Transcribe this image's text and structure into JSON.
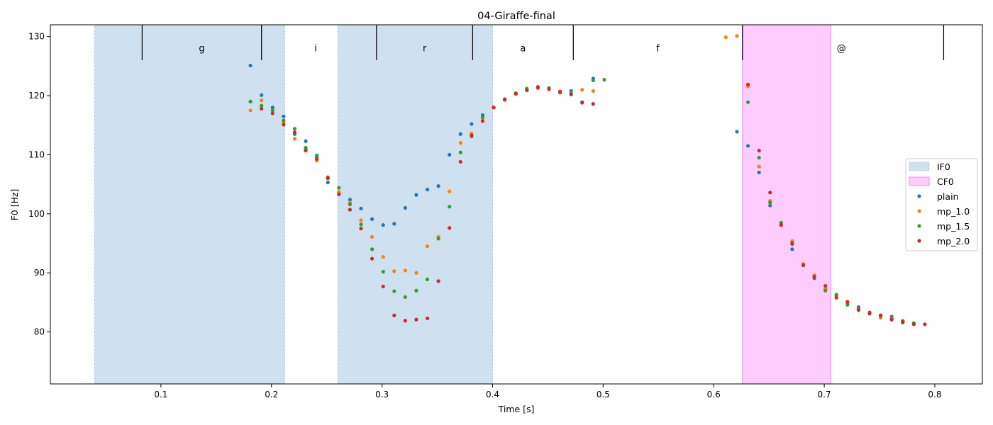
{
  "chart_data": {
    "type": "scatter",
    "title": "04-Giraffe-final",
    "xlabel": "Time [s]",
    "ylabel": "F0 [Hz]",
    "xlim": [
      0.0,
      0.843
    ],
    "ylim": [
      71.2,
      132.0
    ],
    "xticks": [
      {
        "value": 0.1,
        "label": "0.1"
      },
      {
        "value": 0.2,
        "label": "0.2"
      },
      {
        "value": 0.3,
        "label": "0.3"
      },
      {
        "value": 0.4,
        "label": "0.4"
      },
      {
        "value": 0.5,
        "label": "0.5"
      },
      {
        "value": 0.6,
        "label": "0.6"
      },
      {
        "value": 0.7,
        "label": "0.7"
      },
      {
        "value": 0.8,
        "label": "0.8"
      }
    ],
    "yticks": [
      {
        "value": 80,
        "label": "80"
      },
      {
        "value": 90,
        "label": "90"
      },
      {
        "value": 100,
        "label": "100"
      },
      {
        "value": 110,
        "label": "110"
      },
      {
        "value": 120,
        "label": "120"
      },
      {
        "value": 130,
        "label": "130"
      }
    ],
    "grid": false,
    "legend_placement": "center-right",
    "shaded_regions": [
      {
        "name": "IF0",
        "color": "#cfe0ee",
        "border": "#b9c4ea",
        "spans": [
          [
            0.04,
            0.212
          ],
          [
            0.26,
            0.4
          ]
        ]
      },
      {
        "name": "CF0",
        "color": "#ffccff",
        "border": "#f08ff0",
        "spans": [
          [
            0.626,
            0.706
          ]
        ]
      }
    ],
    "segment_boundaries": [
      0.083,
      0.191,
      0.295,
      0.382,
      0.473,
      0.626,
      0.808
    ],
    "segment_labels": [
      {
        "label": "g",
        "x": 0.137
      },
      {
        "label": "i",
        "x": 0.24
      },
      {
        "label": "r",
        "x": 0.3385
      },
      {
        "label": "a",
        "x": 0.4275
      },
      {
        "label": "f",
        "x": 0.5495
      },
      {
        "label": "@",
        "x": 0.7155
      }
    ],
    "series": [
      {
        "name": "plain",
        "color": "#1f77b4",
        "points": [
          [
            0.181,
            125.1
          ],
          [
            0.181,
            119.0
          ],
          [
            0.191,
            120.1
          ],
          [
            0.201,
            118.0
          ],
          [
            0.211,
            116.5
          ],
          [
            0.221,
            113.5
          ],
          [
            0.231,
            112.3
          ],
          [
            0.241,
            109.6
          ],
          [
            0.251,
            105.3
          ],
          [
            0.261,
            103.6
          ],
          [
            0.271,
            102.4
          ],
          [
            0.281,
            100.9
          ],
          [
            0.291,
            99.1
          ],
          [
            0.301,
            98.1
          ],
          [
            0.311,
            98.3
          ],
          [
            0.321,
            101.0
          ],
          [
            0.331,
            103.2
          ],
          [
            0.341,
            104.1
          ],
          [
            0.351,
            104.7
          ],
          [
            0.361,
            110.0
          ],
          [
            0.371,
            113.5
          ],
          [
            0.381,
            115.2
          ],
          [
            0.391,
            116.7
          ],
          [
            0.401,
            118.0
          ],
          [
            0.411,
            119.4
          ],
          [
            0.421,
            120.4
          ],
          [
            0.431,
            121.1
          ],
          [
            0.441,
            121.3
          ],
          [
            0.451,
            121.2
          ],
          [
            0.461,
            120.6
          ],
          [
            0.471,
            120.8
          ],
          [
            0.481,
            118.9
          ],
          [
            0.491,
            122.9
          ],
          [
            0.621,
            113.9
          ],
          [
            0.631,
            111.5
          ],
          [
            0.641,
            107.0
          ],
          [
            0.651,
            101.4
          ],
          [
            0.661,
            98.1
          ],
          [
            0.671,
            94.0
          ],
          [
            0.681,
            91.3
          ],
          [
            0.691,
            89.1
          ],
          [
            0.701,
            87.1
          ],
          [
            0.711,
            86.1
          ],
          [
            0.721,
            84.8
          ],
          [
            0.731,
            84.2
          ],
          [
            0.741,
            83.3
          ],
          [
            0.751,
            82.8
          ],
          [
            0.761,
            82.6
          ],
          [
            0.771,
            81.6
          ],
          [
            0.781,
            81.4
          ]
        ]
      },
      {
        "name": "mp_1.0",
        "color": "#ff7f0e",
        "points": [
          [
            0.181,
            117.5
          ],
          [
            0.191,
            119.2
          ],
          [
            0.201,
            117.5
          ],
          [
            0.211,
            115.5
          ],
          [
            0.221,
            112.7
          ],
          [
            0.231,
            111.0
          ],
          [
            0.241,
            109.0
          ],
          [
            0.251,
            106.2
          ],
          [
            0.261,
            103.7
          ],
          [
            0.271,
            101.9
          ],
          [
            0.281,
            98.9
          ],
          [
            0.291,
            96.1
          ],
          [
            0.301,
            92.7
          ],
          [
            0.311,
            90.3
          ],
          [
            0.321,
            90.4
          ],
          [
            0.331,
            90.0
          ],
          [
            0.341,
            94.5
          ],
          [
            0.351,
            96.1
          ],
          [
            0.361,
            103.8
          ],
          [
            0.371,
            112.0
          ],
          [
            0.381,
            113.6
          ],
          [
            0.391,
            116.2
          ],
          [
            0.401,
            118.0
          ],
          [
            0.411,
            119.3
          ],
          [
            0.421,
            120.3
          ],
          [
            0.431,
            121.0
          ],
          [
            0.441,
            121.3
          ],
          [
            0.451,
            121.3
          ],
          [
            0.461,
            120.7
          ],
          [
            0.471,
            120.4
          ],
          [
            0.481,
            121.0
          ],
          [
            0.491,
            120.8
          ],
          [
            0.611,
            129.9
          ],
          [
            0.621,
            130.1
          ],
          [
            0.631,
            121.6
          ],
          [
            0.641,
            108.0
          ],
          [
            0.651,
            102.2
          ],
          [
            0.661,
            98.4
          ],
          [
            0.671,
            95.4
          ],
          [
            0.681,
            91.5
          ],
          [
            0.691,
            89.6
          ],
          [
            0.701,
            87.3
          ],
          [
            0.711,
            86.2
          ],
          [
            0.721,
            84.9
          ],
          [
            0.731,
            83.8
          ],
          [
            0.741,
            83.3
          ],
          [
            0.751,
            82.4
          ],
          [
            0.761,
            82.3
          ],
          [
            0.771,
            81.9
          ],
          [
            0.781,
            81.4
          ]
        ]
      },
      {
        "name": "mp_1.5",
        "color": "#2ca02c",
        "points": [
          [
            0.181,
            119.0
          ],
          [
            0.191,
            118.3
          ],
          [
            0.201,
            117.5
          ],
          [
            0.211,
            115.8
          ],
          [
            0.221,
            114.4
          ],
          [
            0.231,
            111.2
          ],
          [
            0.241,
            109.9
          ],
          [
            0.251,
            106.0
          ],
          [
            0.261,
            104.4
          ],
          [
            0.271,
            101.6
          ],
          [
            0.281,
            98.2
          ],
          [
            0.291,
            94.0
          ],
          [
            0.301,
            90.2
          ],
          [
            0.311,
            86.9
          ],
          [
            0.321,
            85.9
          ],
          [
            0.331,
            87.0
          ],
          [
            0.341,
            88.9
          ],
          [
            0.351,
            95.8
          ],
          [
            0.361,
            101.2
          ],
          [
            0.371,
            110.4
          ],
          [
            0.381,
            113.1
          ],
          [
            0.391,
            116.4
          ],
          [
            0.401,
            118.0
          ],
          [
            0.411,
            119.4
          ],
          [
            0.421,
            120.4
          ],
          [
            0.431,
            121.2
          ],
          [
            0.441,
            121.5
          ],
          [
            0.451,
            121.3
          ],
          [
            0.461,
            120.5
          ],
          [
            0.471,
            120.4
          ],
          [
            0.491,
            122.6
          ],
          [
            0.501,
            122.7
          ],
          [
            0.631,
            118.9
          ],
          [
            0.641,
            109.5
          ],
          [
            0.651,
            101.9
          ],
          [
            0.661,
            98.5
          ],
          [
            0.671,
            95.1
          ],
          [
            0.681,
            91.3
          ],
          [
            0.691,
            89.4
          ],
          [
            0.701,
            87.0
          ],
          [
            0.711,
            86.3
          ],
          [
            0.721,
            84.6
          ],
          [
            0.731,
            83.9
          ],
          [
            0.741,
            83.3
          ],
          [
            0.751,
            82.7
          ],
          [
            0.761,
            82.2
          ],
          [
            0.771,
            81.8
          ],
          [
            0.781,
            81.5
          ]
        ]
      },
      {
        "name": "mp_2.0",
        "color": "#d62728",
        "points": [
          [
            0.191,
            117.8
          ],
          [
            0.201,
            117.0
          ],
          [
            0.211,
            115.1
          ],
          [
            0.221,
            113.8
          ],
          [
            0.231,
            110.7
          ],
          [
            0.241,
            109.3
          ],
          [
            0.251,
            106.1
          ],
          [
            0.261,
            103.3
          ],
          [
            0.271,
            100.7
          ],
          [
            0.281,
            97.5
          ],
          [
            0.291,
            92.4
          ],
          [
            0.301,
            87.7
          ],
          [
            0.311,
            82.8
          ],
          [
            0.321,
            81.9
          ],
          [
            0.331,
            82.1
          ],
          [
            0.341,
            82.3
          ],
          [
            0.351,
            88.6
          ],
          [
            0.361,
            97.6
          ],
          [
            0.371,
            108.8
          ],
          [
            0.381,
            113.3
          ],
          [
            0.391,
            115.7
          ],
          [
            0.401,
            118.0
          ],
          [
            0.411,
            119.3
          ],
          [
            0.421,
            120.3
          ],
          [
            0.431,
            120.9
          ],
          [
            0.441,
            121.4
          ],
          [
            0.451,
            121.1
          ],
          [
            0.461,
            120.7
          ],
          [
            0.471,
            120.2
          ],
          [
            0.481,
            118.8
          ],
          [
            0.491,
            118.6
          ],
          [
            0.631,
            121.9
          ],
          [
            0.641,
            110.7
          ],
          [
            0.651,
            103.6
          ],
          [
            0.661,
            98.1
          ],
          [
            0.671,
            94.9
          ],
          [
            0.681,
            91.3
          ],
          [
            0.691,
            89.3
          ],
          [
            0.701,
            87.8
          ],
          [
            0.711,
            85.8
          ],
          [
            0.721,
            85.1
          ],
          [
            0.731,
            83.7
          ],
          [
            0.741,
            83.1
          ],
          [
            0.751,
            82.8
          ],
          [
            0.761,
            82.1
          ],
          [
            0.771,
            81.7
          ],
          [
            0.781,
            81.3
          ],
          [
            0.791,
            81.3
          ]
        ]
      }
    ]
  }
}
